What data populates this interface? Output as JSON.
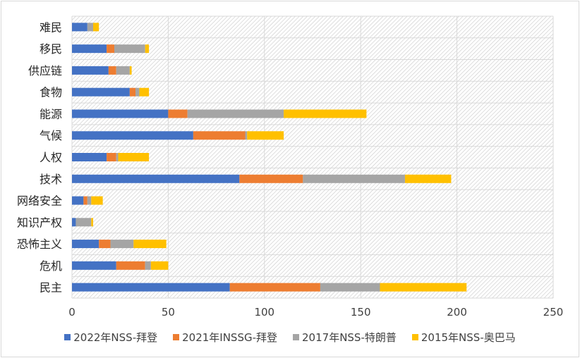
{
  "chart_data": {
    "type": "bar",
    "orientation": "horizontal",
    "stacked": true,
    "categories": [
      "难民",
      "移民",
      "供应链",
      "食物",
      "能源",
      "气候",
      "人权",
      "技术",
      "网络安全",
      "知识产权",
      "恐怖主义",
      "危机",
      "民主"
    ],
    "series": [
      {
        "name": "2022年NSS-拜登",
        "color": "#4472c4",
        "values": [
          8,
          18,
          19,
          30,
          50,
          63,
          18,
          87,
          6,
          2,
          14,
          23,
          82
        ]
      },
      {
        "name": "2021年INSSG-拜登",
        "color": "#ed7d31",
        "values": [
          0,
          4,
          4,
          3,
          10,
          27,
          5,
          33,
          2,
          0,
          6,
          15,
          47
        ]
      },
      {
        "name": "2017年NSS-特朗普",
        "color": "#a5a5a5",
        "values": [
          3,
          16,
          7,
          2,
          50,
          1,
          1,
          53,
          2,
          8,
          12,
          3,
          31
        ]
      },
      {
        "name": "2015年NSS-奥巴马",
        "color": "#ffc000",
        "values": [
          3,
          2,
          1,
          5,
          43,
          19,
          16,
          24,
          6,
          1,
          17,
          9,
          45
        ]
      }
    ],
    "xlim": [
      0,
      250
    ],
    "xticks": [
      "0",
      "50",
      "100",
      "150",
      "200",
      "250"
    ],
    "grid": true,
    "legend_position": "bottom"
  }
}
